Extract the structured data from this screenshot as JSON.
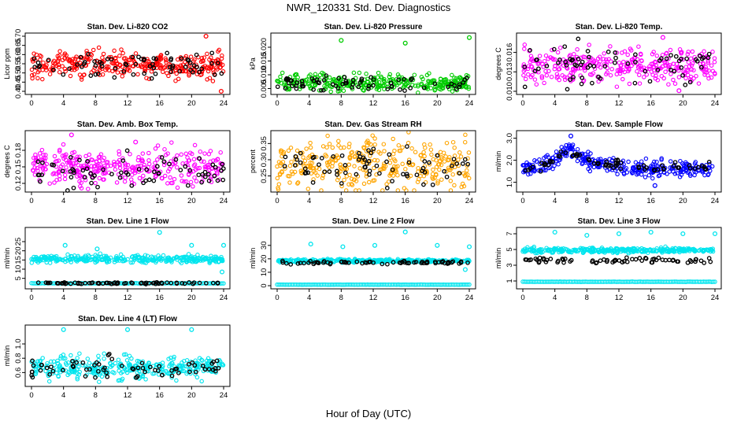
{
  "figure": {
    "title": "NWR_120331  Std. Dev. Diagnostics",
    "xlabel": "Hour of Day (UTC)"
  },
  "chart_data": [
    {
      "type": "scatter",
      "title": "Stan. Dev. Li-820 CO2",
      "ylabel": "Licor ppm",
      "xlim": [
        0,
        24
      ],
      "ylim": [
        0.4,
        0.7
      ],
      "xticks": [
        0,
        4,
        8,
        12,
        16,
        20,
        24
      ],
      "yticks": [
        0.4,
        0.45,
        0.5,
        0.55,
        0.6,
        0.65,
        0.7
      ],
      "ytick_labels": [
        "0.40",
        "0.45",
        "0.50",
        "0.55",
        "0.60",
        "0.65",
        "0.70"
      ],
      "grid": false,
      "legend": "none",
      "series": [
        {
          "color": "#ff0000",
          "band_center": 0.545,
          "band_spread": 0.035,
          "outliers": [
            {
              "x": 21.8,
              "y": 0.7
            },
            {
              "x": 23.7,
              "y": 0.4
            }
          ]
        },
        {
          "color": "#000000",
          "band_center": 0.545,
          "band_spread": 0.035
        }
      ]
    },
    {
      "type": "scatter",
      "title": "Stan. Dev. Li-820 Pressure",
      "ylabel": "kPa",
      "xlim": [
        0,
        24
      ],
      "ylim": [
        0.004,
        0.024
      ],
      "xticks": [
        0,
        4,
        8,
        12,
        16,
        20,
        24
      ],
      "yticks": [
        0.005,
        0.01,
        0.015,
        0.02
      ],
      "ytick_labels": [
        "0.005",
        "0.010",
        "0.015",
        "0.020"
      ],
      "grid": false,
      "legend": "none",
      "series": [
        {
          "color": "#00cc00",
          "band_center": 0.007,
          "band_spread": 0.0015,
          "outliers": [
            {
              "x": 8.0,
              "y": 0.0225
            },
            {
              "x": 16.0,
              "y": 0.0215
            },
            {
              "x": 24.0,
              "y": 0.0235
            }
          ]
        },
        {
          "color": "#000000",
          "band_center": 0.0068,
          "band_spread": 0.0013
        }
      ]
    },
    {
      "type": "scatter",
      "title": "Stan. Dev. Li-820 Temp.",
      "ylabel": "degrees C",
      "xlim": [
        0,
        24
      ],
      "ylim": [
        0.01,
        0.0185
      ],
      "xticks": [
        0,
        4,
        8,
        12,
        16,
        20,
        24
      ],
      "yticks": [
        0.01,
        0.013,
        0.016
      ],
      "ytick_labels": [
        "0.010",
        "0.013",
        "0.016"
      ],
      "grid": false,
      "legend": "none",
      "series": [
        {
          "color": "#ff00ff",
          "band_center": 0.014,
          "band_spread": 0.0014,
          "outliers": [
            {
              "x": 17.5,
              "y": 0.0183
            },
            {
              "x": 19.5,
              "y": 0.0101
            }
          ]
        },
        {
          "color": "#000000",
          "band_center": 0.014,
          "band_spread": 0.0014
        }
      ]
    },
    {
      "type": "scatter",
      "title": "Stan. Dev. Amb. Box Temp.",
      "ylabel": "degrees C",
      "xlim": [
        0,
        24
      ],
      "ylim": [
        0.11,
        0.21
      ],
      "xticks": [
        0,
        4,
        8,
        12,
        16,
        20,
        24
      ],
      "yticks": [
        0.12,
        0.15,
        0.18
      ],
      "ytick_labels": [
        "0.12",
        "0.15",
        "0.18"
      ],
      "grid": false,
      "legend": "none",
      "series": [
        {
          "color": "#ff00ff",
          "band_center": 0.15,
          "band_spread": 0.016,
          "outliers": [
            {
              "x": 5.0,
              "y": 0.208
            },
            {
              "x": 13.0,
              "y": 0.195
            }
          ]
        },
        {
          "color": "#000000",
          "band_center": 0.14,
          "band_spread": 0.014
        }
      ]
    },
    {
      "type": "scatter",
      "title": "Stan. Dev. Gas Stream RH",
      "ylabel": "percent",
      "xlim": [
        0,
        24
      ],
      "ylim": [
        0.21,
        0.38
      ],
      "xticks": [
        0,
        4,
        8,
        12,
        16,
        20,
        24
      ],
      "yticks": [
        0.25,
        0.3,
        0.35
      ],
      "ytick_labels": [
        "0.25",
        "0.30",
        "0.35"
      ],
      "grid": false,
      "legend": "none",
      "series": [
        {
          "color": "#ffa500",
          "band_center": 0.285,
          "band_spread": 0.04
        },
        {
          "color": "#000000",
          "band_center": 0.28,
          "band_spread": 0.03
        }
      ]
    },
    {
      "type": "scatter",
      "title": "Stan. Dev. Sample Flow",
      "ylabel": "ml/min",
      "xlim": [
        0,
        24
      ],
      "ylim": [
        0.7,
        3.2
      ],
      "xticks": [
        0,
        4,
        8,
        12,
        16,
        20,
        24
      ],
      "yticks": [
        1.0,
        2.0,
        3.0
      ],
      "ytick_labels": [
        "1.0",
        "2.0",
        "3.0"
      ],
      "grid": false,
      "legend": "none",
      "series": [
        {
          "color": "#0000ff",
          "trend": [
            [
              0,
              1.6
            ],
            [
              4,
              1.9
            ],
            [
              5.5,
              2.6
            ],
            [
              8,
              2.0
            ],
            [
              12,
              1.75
            ],
            [
              16,
              1.55
            ],
            [
              24,
              1.65
            ]
          ],
          "band_spread": 0.18,
          "outliers": [
            {
              "x": 6.0,
              "y": 3.1
            },
            {
              "x": 16.5,
              "y": 0.85
            }
          ]
        },
        {
          "color": "#000000",
          "trend": [
            [
              0,
              1.6
            ],
            [
              4,
              1.9
            ],
            [
              5.5,
              2.5
            ],
            [
              8,
              2.0
            ],
            [
              12,
              1.8
            ],
            [
              16,
              1.6
            ],
            [
              24,
              1.7
            ]
          ],
          "band_spread": 0.12
        }
      ]
    },
    {
      "type": "scatter",
      "title": "Stan. Dev. Line 1 Flow",
      "ylabel": "ml/min",
      "xlim": [
        0,
        24
      ],
      "ylim": [
        1,
        31
      ],
      "xticks": [
        0,
        4,
        8,
        12,
        16,
        20,
        24
      ],
      "yticks": [
        5,
        10,
        15,
        20,
        25
      ],
      "ytick_labels": [
        "5",
        "10",
        "15",
        "20",
        "25"
      ],
      "grid": false,
      "legend": "none",
      "series": [
        {
          "color": "#00e5ee",
          "band_center": 15.5,
          "band_spread": 1.0,
          "outliers": [
            {
              "x": 4.2,
              "y": 23
            },
            {
              "x": 8.2,
              "y": 21
            },
            {
              "x": 16.0,
              "y": 30
            },
            {
              "x": 20.0,
              "y": 23
            },
            {
              "x": 24.0,
              "y": 23
            },
            {
              "x": 23.8,
              "y": 8.5
            }
          ],
          "baseline": 2.3
        },
        {
          "color": "#000000",
          "band_center": 2.4,
          "band_spread": 0.2
        }
      ]
    },
    {
      "type": "scatter",
      "title": "Stan. Dev. Line 2 Flow",
      "ylabel": "ml/min",
      "xlim": [
        0,
        24
      ],
      "ylim": [
        0,
        41
      ],
      "xticks": [
        0,
        4,
        8,
        12,
        16,
        20,
        24
      ],
      "yticks": [
        0,
        10,
        20,
        30
      ],
      "ytick_labels": [
        "0",
        "10",
        "20",
        "30"
      ],
      "grid": false,
      "legend": "none",
      "series": [
        {
          "color": "#00e5ee",
          "band_center": 18.5,
          "band_spread": 0.6,
          "outliers": [
            {
              "x": 4.2,
              "y": 31
            },
            {
              "x": 8.2,
              "y": 29
            },
            {
              "x": 12.2,
              "y": 30
            },
            {
              "x": 16.0,
              "y": 40
            },
            {
              "x": 20.0,
              "y": 30
            },
            {
              "x": 24.0,
              "y": 29
            },
            {
              "x": 23.5,
              "y": 12
            }
          ],
          "baseline": 0.8
        },
        {
          "color": "#000000",
          "band_center": 17.2,
          "band_spread": 0.6
        }
      ]
    },
    {
      "type": "scatter",
      "title": "Stan. Dev. Line 3 Flow",
      "ylabel": "ml/min",
      "xlim": [
        0,
        24
      ],
      "ylim": [
        0.4,
        7.4
      ],
      "xticks": [
        0,
        4,
        8,
        12,
        16,
        20,
        24
      ],
      "yticks": [
        1,
        3,
        5,
        7
      ],
      "ytick_labels": [
        "1",
        "3",
        "5",
        "7"
      ],
      "grid": false,
      "legend": "none",
      "series": [
        {
          "color": "#00e5ee",
          "band_center": 4.9,
          "band_spread": 0.15,
          "outliers": [
            {
              "x": 4.0,
              "y": 7.2
            },
            {
              "x": 8.0,
              "y": 6.8
            },
            {
              "x": 12.0,
              "y": 7.0
            },
            {
              "x": 16.0,
              "y": 7.2
            },
            {
              "x": 20.0,
              "y": 7.0
            },
            {
              "x": 24.0,
              "y": 7.0
            }
          ],
          "baseline": 0.9
        },
        {
          "color": "#000000",
          "band_center": 3.6,
          "band_spread": 0.2
        }
      ]
    },
    {
      "type": "scatter",
      "title": "Stan. Dev. Line 4 (LT) Flow",
      "ylabel": "ml/min",
      "xlim": [
        0,
        24
      ],
      "ylim": [
        0.45,
        1.22
      ],
      "xticks": [
        0,
        4,
        8,
        12,
        16,
        20,
        24
      ],
      "yticks": [
        0.6,
        0.8,
        1.0
      ],
      "ytick_labels": [
        "0.6",
        "0.8",
        "1.0"
      ],
      "grid": false,
      "legend": "none",
      "series": [
        {
          "color": "#00e5ee",
          "band_center": 0.67,
          "band_spread": 0.08,
          "outliers": [
            {
              "x": 4.0,
              "y": 1.2
            },
            {
              "x": 12.0,
              "y": 1.2
            },
            {
              "x": 20.0,
              "y": 1.2
            }
          ]
        },
        {
          "color": "#000000",
          "band_center": 0.66,
          "band_spread": 0.07
        }
      ]
    }
  ]
}
